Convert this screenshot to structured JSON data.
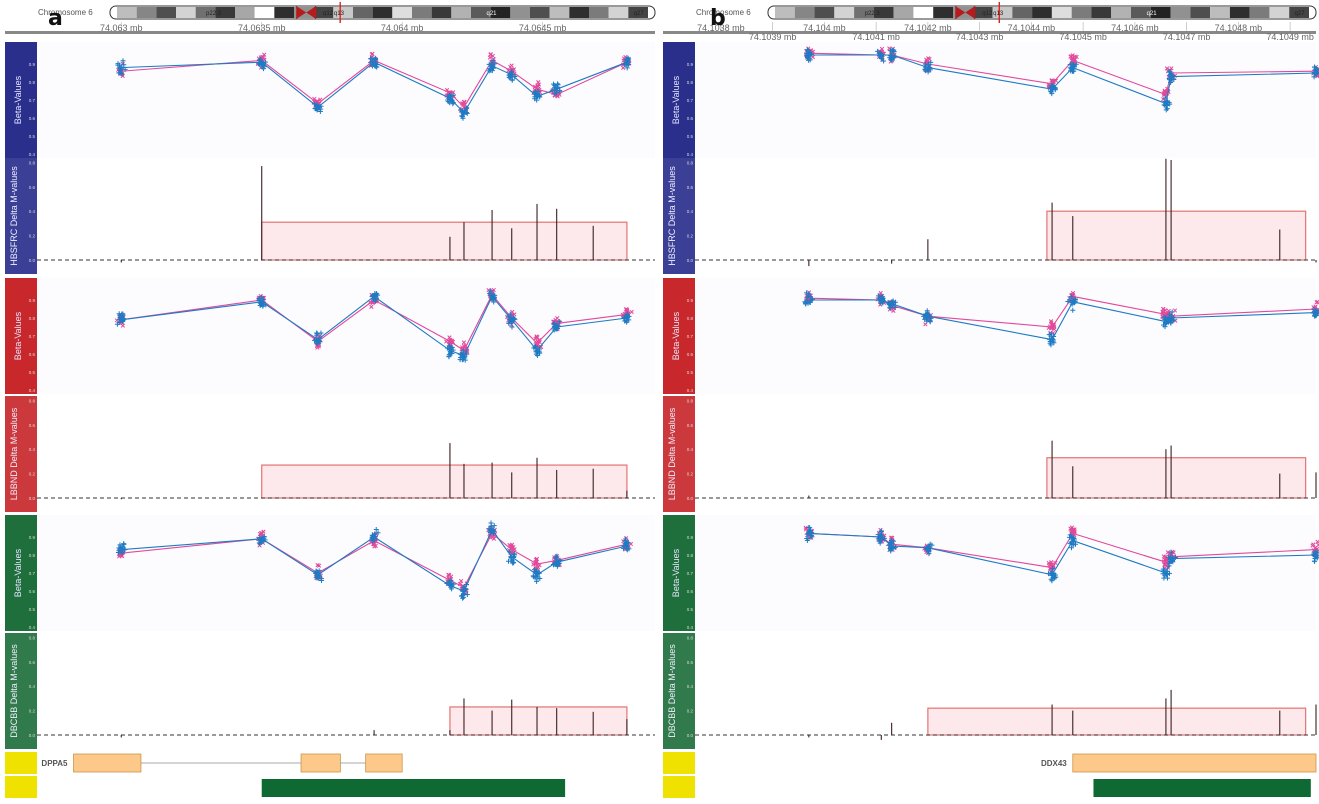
{
  "colors": {
    "blue": "#2a2f8c",
    "red": "#c8282c",
    "green": "#1f6f3c",
    "yellow": "#f0e200",
    "series_a": "#1f7bc2",
    "series_b": "#e2499a",
    "region_fill": "#fde8ec",
    "region_stroke": "#e57373",
    "exon_fill": "#fcc98a",
    "cpg_bar": "#0e6a32"
  },
  "panels": [
    {
      "label": "a",
      "chromosome": "Chromosome 6",
      "bands": [
        "p22.3",
        "q12",
        "q13",
        "q21",
        "q27"
      ],
      "xmin": 74.0627,
      "xmax": 74.0649,
      "ticks": [
        {
          "v": 74.063,
          "t": "74.063 mb",
          "row": 0
        },
        {
          "v": 74.0635,
          "t": "74.0635 mb",
          "row": 0
        },
        {
          "v": 74.064,
          "t": "74.064 mb",
          "row": 0
        },
        {
          "v": 74.0645,
          "t": "74.0645 mb",
          "row": 0
        }
      ],
      "cpg": [
        74.063,
        74.0635,
        74.0637,
        74.0639,
        74.06417,
        74.06422,
        74.06432,
        74.06439,
        74.06448,
        74.06455,
        74.06468,
        74.0648
      ],
      "tracks": [
        {
          "name": "HBSFRC",
          "beta": {
            "blue": [
              0.88,
              0.91,
              0.66,
              0.91,
              0.71,
              0.63,
              0.89,
              0.84,
              0.72,
              0.76,
              0.91
            ],
            "pink": [
              0.86,
              0.92,
              0.68,
              0.92,
              0.74,
              0.66,
              0.92,
              0.86,
              0.76,
              0.73,
              0.91
            ]
          },
          "delta": [
            -0.02,
            0.77,
            0,
            0,
            0.19,
            0.31,
            0.41,
            0.26,
            0.46,
            0.42,
            0.28,
            0
          ],
          "region": {
            "start": 74.0635,
            "end": 74.0648,
            "h": 0.31
          }
        },
        {
          "name": "LBBND",
          "beta": {
            "blue": [
              0.79,
              0.89,
              0.68,
              0.92,
              0.62,
              0.59,
              0.92,
              0.79,
              0.62,
              0.75,
              0.8
            ],
            "pink": [
              0.79,
              0.9,
              0.67,
              0.9,
              0.67,
              0.62,
              0.93,
              0.8,
              0.66,
              0.77,
              0.82
            ]
          },
          "delta": [
            -0.01,
            0,
            0,
            0,
            0.45,
            0.28,
            0.29,
            0.21,
            0.33,
            0.23,
            0.24,
            0.06
          ],
          "region": {
            "start": 74.0635,
            "end": 74.0648,
            "h": 0.27
          }
        },
        {
          "name": "DBCBB",
          "beta": {
            "blue": [
              0.83,
              0.89,
              0.69,
              0.9,
              0.63,
              0.6,
              0.94,
              0.79,
              0.69,
              0.76,
              0.85
            ],
            "pink": [
              0.81,
              0.89,
              0.7,
              0.88,
              0.66,
              0.62,
              0.92,
              0.83,
              0.75,
              0.77,
              0.86
            ]
          },
          "delta": [
            -0.02,
            0,
            0,
            0.04,
            0.04,
            0.3,
            0.2,
            0.29,
            0.23,
            0.22,
            0.19,
            0.13
          ],
          "region": {
            "start": 74.06417,
            "end": 74.0648,
            "h": 0.23
          }
        }
      ],
      "gene": {
        "name": "DPPA5",
        "exons": [
          [
            74.06283,
            74.06307
          ],
          [
            74.06364,
            74.06378
          ],
          [
            74.06387,
            74.064
          ]
        ],
        "cpg_island": [
          74.0635,
          74.06458
        ]
      }
    },
    {
      "label": "b",
      "chromosome": "Chromosome 6",
      "bands": [
        "p22.3",
        "q12",
        "q13",
        "q21",
        "q27"
      ],
      "xmin": 74.10375,
      "xmax": 74.10495,
      "ticks": [
        {
          "v": 74.1038,
          "t": "74.1038 mb",
          "row": 0
        },
        {
          "v": 74.1039,
          "t": "74.1039 mb",
          "row": 1
        },
        {
          "v": 74.104,
          "t": "74.104 mb",
          "row": 0
        },
        {
          "v": 74.1041,
          "t": "74.1041 mb",
          "row": 1
        },
        {
          "v": 74.1042,
          "t": "74.1042 mb",
          "row": 0
        },
        {
          "v": 74.1043,
          "t": "74.1043 mb",
          "row": 1
        },
        {
          "v": 74.1044,
          "t": "74.1044 mb",
          "row": 0
        },
        {
          "v": 74.1045,
          "t": "74.1045 mb",
          "row": 1
        },
        {
          "v": 74.1046,
          "t": "74.1046 mb",
          "row": 0
        },
        {
          "v": 74.1047,
          "t": "74.1047 mb",
          "row": 1
        },
        {
          "v": 74.1048,
          "t": "74.1048 mb",
          "row": 0
        },
        {
          "v": 74.1049,
          "t": "74.1049 mb",
          "row": 1
        }
      ],
      "cpg": [
        74.10397,
        74.10411,
        74.10413,
        74.1042,
        74.10444,
        74.10448,
        74.10466,
        74.10467,
        74.10488,
        74.10495
      ],
      "tracks": [
        {
          "name": "HBSFRC",
          "beta": {
            "blue": [
              0.95,
              0.95,
              0.95,
              0.88,
              0.76,
              0.88,
              0.68,
              0.83,
              0.85
            ],
            "pink": [
              0.96,
              0.95,
              0.95,
              0.9,
              0.79,
              0.92,
              0.73,
              0.85,
              0.86
            ]
          },
          "delta": [
            -0.05,
            -0.01,
            -0.03,
            0.17,
            0.47,
            0.36,
            0.83,
            0.82,
            0.25,
            -0.02
          ],
          "region": {
            "start": 74.10443,
            "end": 74.10493,
            "h": 0.4
          }
        },
        {
          "name": "LBBND",
          "beta": {
            "blue": [
              0.9,
              0.9,
              0.88,
              0.81,
              0.68,
              0.89,
              0.78,
              0.8,
              0.83
            ],
            "pink": [
              0.91,
              0.9,
              0.87,
              0.81,
              0.75,
              0.92,
              0.82,
              0.81,
              0.85
            ]
          },
          "delta": [
            0.02,
            0,
            0,
            0,
            0.47,
            0.26,
            0.4,
            0.43,
            0.2,
            0.21
          ],
          "region": {
            "start": 74.10443,
            "end": 74.10493,
            "h": 0.33
          }
        },
        {
          "name": "DBCBB",
          "beta": {
            "blue": [
              0.92,
              0.9,
              0.85,
              0.84,
              0.69,
              0.88,
              0.7,
              0.78,
              0.8
            ],
            "pink": [
              0.92,
              0.9,
              0.86,
              0.84,
              0.73,
              0.92,
              0.76,
              0.79,
              0.83
            ]
          },
          "delta": [
            -0.02,
            -0.04,
            0.1,
            0,
            0.25,
            0.2,
            0.3,
            0.37,
            0.2,
            0.25
          ],
          "region": {
            "start": 74.1042,
            "end": 74.10493,
            "h": 0.22
          }
        }
      ],
      "gene": {
        "name": "DDX43",
        "exons": [
          [
            74.10448,
            74.10495
          ]
        ],
        "cpg_island": [
          74.10452,
          74.10494
        ]
      }
    }
  ],
  "chart_data": [
    {
      "type": "scatter",
      "title": "a",
      "ylabel": "Beta-Values",
      "ylim": [
        0.4,
        1.0
      ],
      "tracks": [
        "HBSFRC",
        "LBBND",
        "DBCBB"
      ],
      "gene": "DPPA5"
    },
    {
      "type": "scatter",
      "title": "b",
      "ylabel": "Beta-Values",
      "ylim": [
        0.4,
        1.0
      ],
      "tracks": [
        "HBSFRC",
        "LBBND",
        "DBCBB"
      ],
      "gene": "DDX43"
    }
  ]
}
